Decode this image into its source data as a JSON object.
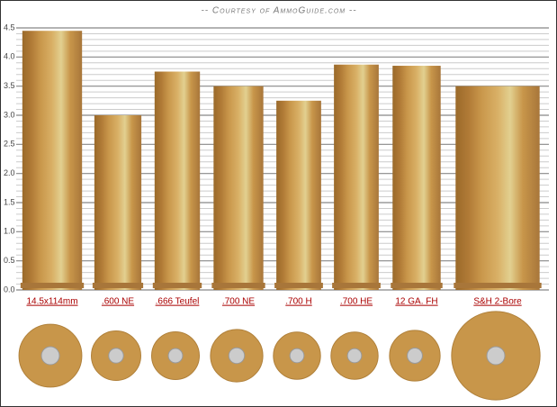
{
  "chart_data": {
    "type": "cartridge",
    "title": "-- Courtesy of AmmoGuide.com --",
    "categories": [
      "14.5x114mm",
      ".600 NE",
      ".666 Teufel",
      ".700 NE",
      ".700 H",
      ".700 HE",
      "12 GA. FH",
      "S&H 2-Bore"
    ],
    "values": [
      4.45,
      3.0,
      3.75,
      3.5,
      3.25,
      3.87,
      3.85,
      3.5
    ],
    "rim_diameters": [
      1.08,
      0.85,
      0.82,
      0.9,
      0.81,
      0.81,
      0.87,
      1.52
    ],
    "color": "#c8964a",
    "ylim": [
      0,
      4.5
    ],
    "yticks": [
      {
        "value": 0,
        "label": "0.0"
      },
      0.5,
      {
        "value": 1,
        "label": "1.0"
      },
      1.5,
      {
        "value": 2,
        "label": "2.0"
      },
      2.5,
      {
        "value": 3,
        "label": "3.0"
      },
      3.5,
      {
        "value": 4,
        "label": "4.0"
      },
      4.5
    ],
    "grid": true
  }
}
